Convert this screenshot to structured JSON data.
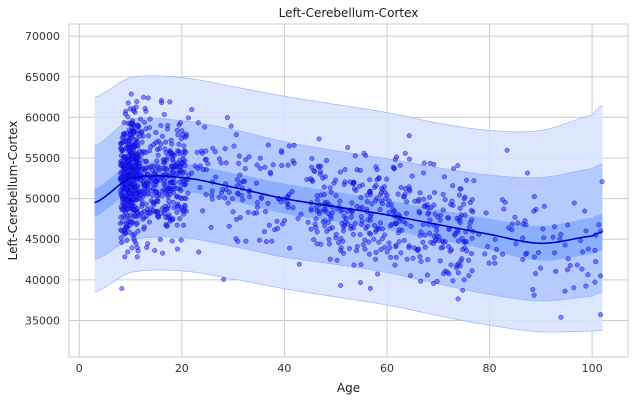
{
  "chart_data": {
    "type": "scatter",
    "title": "Left-Cerebellum-Cortex",
    "xlabel": "Age",
    "ylabel": "Left-Cerebellum-Cortex",
    "xlim": [
      -2,
      107
    ],
    "ylim": [
      30500,
      71500
    ],
    "xticks": [
      0,
      20,
      40,
      60,
      80,
      100
    ],
    "yticks": [
      35000,
      40000,
      45000,
      50000,
      55000,
      60000,
      65000,
      70000
    ],
    "grid": true,
    "colors": {
      "points": "#1a1aff",
      "median": "#0000cc",
      "band_inner": "#7aa2ff",
      "band_mid": "#a8c2ff",
      "band_outer": "#d6e2ff",
      "grid": "#cccccc"
    },
    "centile_curve": {
      "x": [
        3,
        10,
        20,
        30,
        40,
        50,
        60,
        70,
        80,
        90,
        100,
        102
      ],
      "median": [
        49500,
        52500,
        52600,
        51400,
        50000,
        49000,
        48000,
        46800,
        45600,
        44500,
        45400,
        45900
      ],
      "inner_lo": [
        47800,
        50800,
        50900,
        49700,
        48200,
        47200,
        46200,
        45000,
        43700,
        42400,
        43200,
        43700
      ],
      "inner_hi": [
        51200,
        54200,
        54300,
        53100,
        51800,
        50800,
        49800,
        48600,
        47500,
        46600,
        47600,
        48100
      ],
      "mid_lo": [
        42500,
        44900,
        45200,
        44100,
        42800,
        41900,
        40900,
        39500,
        38200,
        37400,
        38000,
        38500
      ],
      "mid_hi": [
        56500,
        59700,
        59600,
        58500,
        57000,
        55900,
        54900,
        53800,
        52900,
        52600,
        53700,
        54300
      ],
      "outer_lo": [
        38500,
        40900,
        41100,
        40100,
        38900,
        37900,
        36900,
        35600,
        34400,
        33600,
        33700,
        33800
      ],
      "outer_hi": [
        62500,
        64900,
        64900,
        63800,
        62600,
        61600,
        60600,
        59300,
        58400,
        58400,
        60300,
        61500
      ]
    }
  }
}
